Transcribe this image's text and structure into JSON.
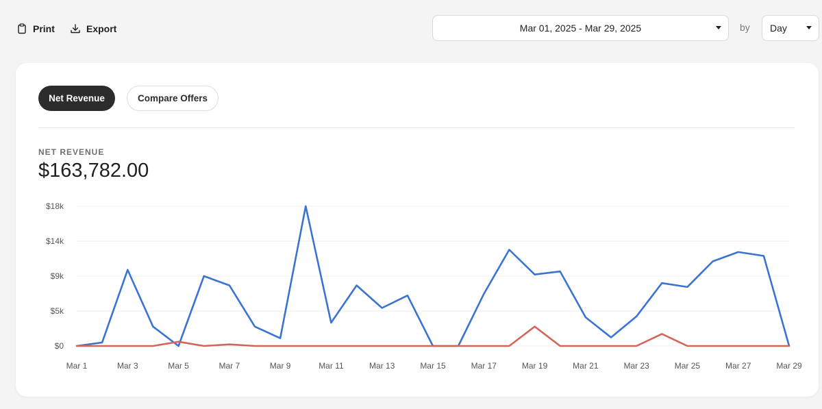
{
  "toolbar": {
    "print_label": "Print",
    "export_label": "Export",
    "print_icon": "clipboard-icon",
    "export_icon": "download-icon"
  },
  "filters": {
    "date_range": "Mar 01, 2025 - Mar 29, 2025",
    "by_label": "by",
    "granularity": "Day"
  },
  "card": {
    "tabs": [
      {
        "label": "Net Revenue",
        "active": true
      },
      {
        "label": "Compare Offers",
        "active": false
      }
    ],
    "metric_label": "NET REVENUE",
    "metric_value": "$163,782.00"
  },
  "colors": {
    "blue_series": "#3a73d2",
    "red_series": "#d4645a",
    "active_tab": "#2c2c2c"
  },
  "chart_data": {
    "type": "line",
    "title": "",
    "xlabel": "",
    "ylabel": "",
    "ylim": [
      0,
      18000
    ],
    "y_ticks": [
      {
        "value": 0,
        "label": "$0"
      },
      {
        "value": 4500,
        "label": "$5k"
      },
      {
        "value": 9000,
        "label": "$9k"
      },
      {
        "value": 13500,
        "label": "$14k"
      },
      {
        "value": 18000,
        "label": "$18k"
      }
    ],
    "grid": true,
    "legend": "none",
    "x": [
      "Mar 1",
      "Mar 2",
      "Mar 3",
      "Mar 4",
      "Mar 5",
      "Mar 6",
      "Mar 7",
      "Mar 8",
      "Mar 9",
      "Mar 10",
      "Mar 11",
      "Mar 12",
      "Mar 13",
      "Mar 14",
      "Mar 15",
      "Mar 16",
      "Mar 17",
      "Mar 18",
      "Mar 19",
      "Mar 20",
      "Mar 21",
      "Mar 22",
      "Mar 23",
      "Mar 24",
      "Mar 25",
      "Mar 26",
      "Mar 27",
      "Mar 28",
      "Mar 29"
    ],
    "x_tick_labels": [
      "Mar 1",
      "Mar 3",
      "Mar 5",
      "Mar 7",
      "Mar 9",
      "Mar 11",
      "Mar 13",
      "Mar 15",
      "Mar 17",
      "Mar 19",
      "Mar 21",
      "Mar 23",
      "Mar 25",
      "Mar 27",
      "Mar 29"
    ],
    "series": [
      {
        "color": "#3a73d2",
        "values": [
          0,
          450,
          9800,
          2500,
          0,
          9000,
          7800,
          2500,
          1000,
          18000,
          3000,
          7800,
          4900,
          6500,
          0,
          0,
          6700,
          12400,
          9200,
          9600,
          3700,
          1100,
          3800,
          8100,
          7600,
          10900,
          12100,
          11600,
          0
        ]
      },
      {
        "color": "#d4645a",
        "values": [
          0,
          0,
          0,
          0,
          550,
          0,
          200,
          0,
          0,
          0,
          0,
          0,
          0,
          0,
          0,
          0,
          0,
          0,
          2500,
          0,
          0,
          0,
          0,
          1550,
          0,
          0,
          0,
          0,
          0
        ]
      }
    ]
  }
}
